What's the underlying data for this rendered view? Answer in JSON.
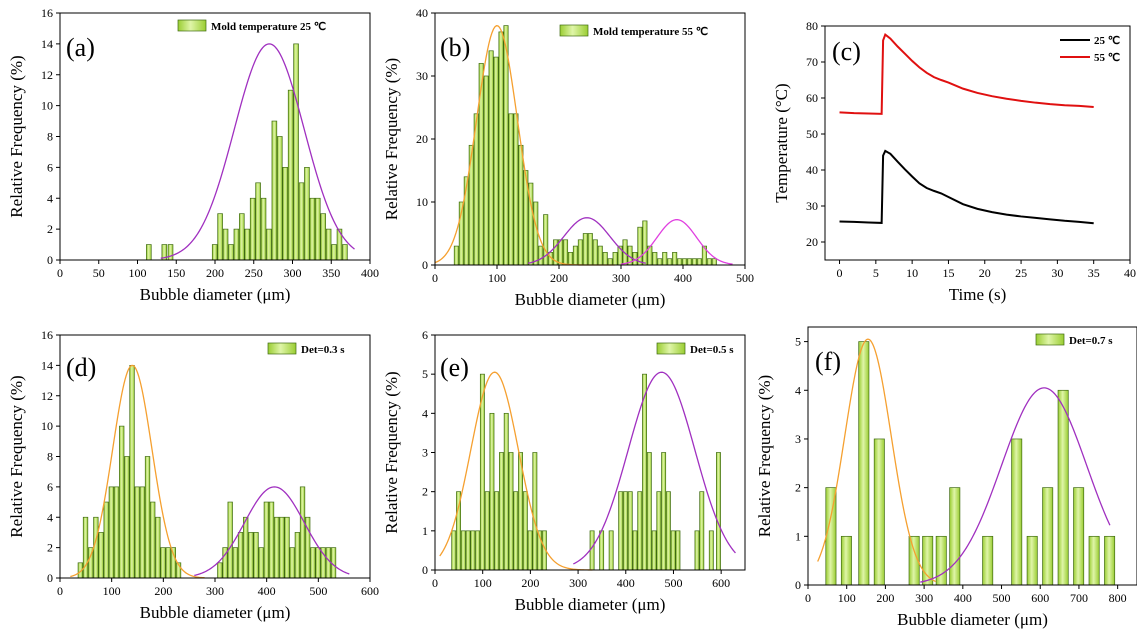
{
  "colors": {
    "bar_fill": "#9acd32",
    "bar_highlight": "#dff5a8",
    "bar_stroke": "#3f6b12",
    "fit_orange": "#f5a030",
    "fit_purple": "#a030c0",
    "fit_magenta": "#e040e0",
    "line_25": "#000000",
    "line_55": "#e01010"
  },
  "chart_data": [
    {
      "id": "a",
      "type": "bar",
      "panel_label": "(a)",
      "legend": "Mold temperature 25 ℃",
      "xlabel": "Bubble diameter (μm)",
      "ylabel": "Relative Frequency (%)",
      "xlim": [
        0,
        400
      ],
      "ylim": [
        0,
        16
      ],
      "xticks": [
        0,
        50,
        100,
        150,
        200,
        250,
        300,
        350,
        400
      ],
      "yticks": [
        0,
        2,
        4,
        6,
        8,
        10,
        12,
        14,
        16
      ],
      "bin_width": 7,
      "bars": [
        [
          115,
          1
        ],
        [
          135,
          1
        ],
        [
          143,
          1
        ],
        [
          200,
          1
        ],
        [
          207,
          3
        ],
        [
          214,
          2
        ],
        [
          221,
          1
        ],
        [
          228,
          2
        ],
        [
          235,
          3
        ],
        [
          242,
          2
        ],
        [
          249,
          4
        ],
        [
          256,
          5
        ],
        [
          263,
          4
        ],
        [
          270,
          2
        ],
        [
          277,
          9
        ],
        [
          284,
          8
        ],
        [
          291,
          6
        ],
        [
          298,
          11
        ],
        [
          305,
          14
        ],
        [
          312,
          5
        ],
        [
          319,
          6
        ],
        [
          326,
          4
        ],
        [
          333,
          4
        ],
        [
          340,
          3
        ],
        [
          347,
          2
        ],
        [
          354,
          1
        ],
        [
          361,
          2
        ],
        [
          368,
          1
        ]
      ],
      "fits": [
        {
          "color": "fit_purple",
          "mean": 270,
          "sd": 45,
          "peak": 14,
          "range": [
            130,
            380
          ]
        }
      ]
    },
    {
      "id": "b",
      "type": "bar",
      "panel_label": "(b)",
      "legend": "Mold temperature 55 ℃",
      "xlabel": "Bubble diameter (μm)",
      "ylabel": "Relative Frequency (%)",
      "xlim": [
        0,
        500
      ],
      "ylim": [
        0,
        40
      ],
      "xticks": [
        0,
        100,
        200,
        300,
        400,
        500
      ],
      "yticks": [
        0,
        10,
        20,
        30,
        40
      ],
      "bin_width": 8,
      "bars": [
        [
          35,
          3
        ],
        [
          43,
          10
        ],
        [
          51,
          14
        ],
        [
          59,
          19
        ],
        [
          67,
          24
        ],
        [
          75,
          32
        ],
        [
          83,
          30
        ],
        [
          91,
          34
        ],
        [
          99,
          33
        ],
        [
          107,
          37
        ],
        [
          115,
          38
        ],
        [
          123,
          24
        ],
        [
          131,
          24
        ],
        [
          139,
          19
        ],
        [
          147,
          15
        ],
        [
          155,
          13
        ],
        [
          163,
          10
        ],
        [
          171,
          3
        ],
        [
          179,
          8
        ],
        [
          187,
          2
        ],
        [
          195,
          4
        ],
        [
          203,
          4
        ],
        [
          211,
          4
        ],
        [
          219,
          2
        ],
        [
          227,
          3
        ],
        [
          235,
          4
        ],
        [
          243,
          5
        ],
        [
          251,
          5
        ],
        [
          259,
          4
        ],
        [
          267,
          3
        ],
        [
          275,
          2
        ],
        [
          283,
          1
        ],
        [
          291,
          2
        ],
        [
          299,
          3
        ],
        [
          307,
          4
        ],
        [
          315,
          3
        ],
        [
          323,
          2
        ],
        [
          331,
          6
        ],
        [
          339,
          7
        ],
        [
          347,
          3
        ],
        [
          355,
          2
        ],
        [
          363,
          1
        ],
        [
          371,
          2
        ],
        [
          379,
          1
        ],
        [
          387,
          2
        ],
        [
          395,
          1
        ],
        [
          403,
          1
        ],
        [
          411,
          1
        ],
        [
          419,
          1
        ],
        [
          427,
          1
        ],
        [
          435,
          3
        ],
        [
          443,
          1
        ],
        [
          451,
          1
        ]
      ],
      "fits": [
        {
          "color": "fit_orange",
          "mean": 100,
          "sd": 33,
          "peak": 38,
          "range": [
            0,
            290
          ]
        },
        {
          "color": "fit_purple",
          "mean": 245,
          "sd": 37,
          "peak": 7.5,
          "range": [
            150,
            340
          ]
        },
        {
          "color": "fit_magenta",
          "mean": 390,
          "sd": 32,
          "peak": 7.2,
          "range": [
            300,
            480
          ]
        }
      ]
    },
    {
      "id": "c",
      "type": "line",
      "panel_label": "(c)",
      "xlabel": "Time (s)",
      "ylabel": "Temperature (°C)",
      "xlim": [
        -2,
        40
      ],
      "ylim": [
        15,
        80
      ],
      "xticks": [
        0,
        5,
        10,
        15,
        20,
        25,
        30,
        35,
        40
      ],
      "yticks": [
        20,
        30,
        40,
        50,
        60,
        70,
        80
      ],
      "series": [
        {
          "name": "25 ℃",
          "color": "line_25",
          "points": [
            [
              0,
              25.7
            ],
            [
              2,
              25.6
            ],
            [
              4,
              25.4
            ],
            [
              5.8,
              25.3
            ],
            [
              6.0,
              44
            ],
            [
              6.3,
              45.3
            ],
            [
              7,
              44.5
            ],
            [
              8,
              42.3
            ],
            [
              9,
              40.2
            ],
            [
              10,
              38.2
            ],
            [
              11,
              36.3
            ],
            [
              12,
              35
            ],
            [
              13,
              34.2
            ],
            [
              14,
              33.5
            ],
            [
              15,
              32.5
            ],
            [
              17,
              30.5
            ],
            [
              19,
              29.2
            ],
            [
              21,
              28.3
            ],
            [
              23,
              27.6
            ],
            [
              25,
              27.1
            ],
            [
              27,
              26.7
            ],
            [
              29,
              26.3
            ],
            [
              31,
              25.9
            ],
            [
              33,
              25.6
            ],
            [
              35,
              25.2
            ]
          ]
        },
        {
          "name": "55 ℃",
          "color": "line_55",
          "points": [
            [
              0,
              56
            ],
            [
              2,
              55.8
            ],
            [
              4,
              55.7
            ],
            [
              5.8,
              55.6
            ],
            [
              6.0,
              76
            ],
            [
              6.3,
              77.6
            ],
            [
              7,
              76.5
            ],
            [
              8,
              74.3
            ],
            [
              9,
              72.3
            ],
            [
              10,
              70.3
            ],
            [
              11,
              68.5
            ],
            [
              12,
              67
            ],
            [
              13,
              65.8
            ],
            [
              14,
              65
            ],
            [
              15,
              64.3
            ],
            [
              17,
              62.6
            ],
            [
              19,
              61.4
            ],
            [
              21,
              60.5
            ],
            [
              23,
              59.8
            ],
            [
              25,
              59.2
            ],
            [
              27,
              58.7
            ],
            [
              29,
              58.3
            ],
            [
              31,
              58
            ],
            [
              33,
              57.8
            ],
            [
              35,
              57.5
            ]
          ]
        }
      ]
    },
    {
      "id": "d",
      "type": "bar",
      "panel_label": "(d)",
      "legend": "Det=0.3 s",
      "xlabel": "Bubble diameter (μm)",
      "ylabel": "Relative Frequency (%)",
      "xlim": [
        0,
        600
      ],
      "ylim": [
        0,
        16
      ],
      "xticks": [
        0,
        100,
        200,
        300,
        400,
        500,
        600
      ],
      "yticks": [
        0,
        2,
        4,
        6,
        8,
        10,
        12,
        14,
        16
      ],
      "bin_width": 10,
      "bars": [
        [
          40,
          1
        ],
        [
          50,
          4
        ],
        [
          60,
          2
        ],
        [
          70,
          4
        ],
        [
          80,
          3
        ],
        [
          90,
          5
        ],
        [
          100,
          6
        ],
        [
          110,
          6
        ],
        [
          120,
          10
        ],
        [
          130,
          8
        ],
        [
          140,
          14
        ],
        [
          150,
          6
        ],
        [
          160,
          6
        ],
        [
          170,
          8
        ],
        [
          180,
          5
        ],
        [
          190,
          4
        ],
        [
          200,
          2
        ],
        [
          210,
          2
        ],
        [
          220,
          2
        ],
        [
          230,
          1
        ],
        [
          310,
          1
        ],
        [
          320,
          2
        ],
        [
          330,
          5
        ],
        [
          340,
          2
        ],
        [
          350,
          3
        ],
        [
          360,
          4
        ],
        [
          370,
          3
        ],
        [
          380,
          3
        ],
        [
          390,
          2
        ],
        [
          400,
          5
        ],
        [
          410,
          5
        ],
        [
          420,
          4
        ],
        [
          430,
          4
        ],
        [
          440,
          4
        ],
        [
          450,
          2
        ],
        [
          460,
          3
        ],
        [
          470,
          6
        ],
        [
          480,
          4
        ],
        [
          490,
          2
        ],
        [
          500,
          2
        ],
        [
          510,
          2
        ],
        [
          520,
          2
        ],
        [
          530,
          2
        ]
      ],
      "fits": [
        {
          "color": "fit_orange",
          "mean": 140,
          "sd": 38,
          "peak": 14,
          "range": [
            20,
            280
          ]
        },
        {
          "color": "fit_purple",
          "mean": 415,
          "sd": 58,
          "peak": 6,
          "range": [
            260,
            560
          ]
        }
      ]
    },
    {
      "id": "e",
      "type": "bar",
      "panel_label": "(e)",
      "legend": "Det=0.5 s",
      "xlabel": "Bubble diameter (μm)",
      "ylabel": "Relative Frequency (%)",
      "xlim": [
        0,
        650
      ],
      "ylim": [
        0,
        6
      ],
      "xticks": [
        0,
        100,
        200,
        300,
        400,
        500,
        600
      ],
      "yticks": [
        0,
        1,
        2,
        3,
        4,
        5,
        6
      ],
      "bin_width": 10,
      "bars": [
        [
          40,
          1
        ],
        [
          50,
          2
        ],
        [
          60,
          1
        ],
        [
          70,
          1
        ],
        [
          80,
          1
        ],
        [
          90,
          1
        ],
        [
          100,
          5
        ],
        [
          110,
          2
        ],
        [
          120,
          4
        ],
        [
          130,
          2
        ],
        [
          140,
          3
        ],
        [
          150,
          4
        ],
        [
          160,
          3
        ],
        [
          170,
          2
        ],
        [
          180,
          3
        ],
        [
          190,
          2
        ],
        [
          200,
          1
        ],
        [
          210,
          3
        ],
        [
          220,
          1
        ],
        [
          230,
          1
        ],
        [
          330,
          1
        ],
        [
          350,
          1
        ],
        [
          370,
          1
        ],
        [
          390,
          2
        ],
        [
          400,
          2
        ],
        [
          410,
          2
        ],
        [
          420,
          1
        ],
        [
          430,
          2
        ],
        [
          440,
          5
        ],
        [
          450,
          3
        ],
        [
          460,
          1
        ],
        [
          470,
          2
        ],
        [
          480,
          3
        ],
        [
          490,
          2
        ],
        [
          500,
          1
        ],
        [
          510,
          1
        ],
        [
          550,
          1
        ],
        [
          560,
          2
        ],
        [
          580,
          1
        ],
        [
          595,
          3
        ]
      ],
      "fits": [
        {
          "color": "fit_orange",
          "mean": 125,
          "sd": 50,
          "peak": 5.05,
          "range": [
            10,
            330
          ]
        },
        {
          "color": "fit_purple",
          "mean": 475,
          "sd": 70,
          "peak": 5.05,
          "range": [
            290,
            630
          ]
        }
      ]
    },
    {
      "id": "f",
      "type": "bar",
      "panel_label": "(f)",
      "legend": "Det=0.7 s",
      "xlabel": "Bubble diameter (μm)",
      "ylabel": "Relative Frequency (%)",
      "xlim": [
        0,
        850
      ],
      "ylim": [
        0,
        5.3
      ],
      "xticks": [
        0,
        100,
        200,
        300,
        400,
        500,
        600,
        700,
        800
      ],
      "yticks": [
        0,
        1,
        2,
        3,
        4,
        5
      ],
      "bin_width": 28,
      "bars": [
        [
          60,
          2
        ],
        [
          100,
          1
        ],
        [
          145,
          5
        ],
        [
          185,
          3
        ],
        [
          275,
          1
        ],
        [
          310,
          1
        ],
        [
          345,
          1
        ],
        [
          380,
          2
        ],
        [
          465,
          1
        ],
        [
          540,
          3
        ],
        [
          580,
          1
        ],
        [
          620,
          2
        ],
        [
          660,
          4
        ],
        [
          700,
          2
        ],
        [
          740,
          1
        ],
        [
          780,
          1
        ]
      ],
      "fits": [
        {
          "color": "fit_orange",
          "mean": 155,
          "sd": 60,
          "peak": 5.05,
          "range": [
            25,
            330
          ]
        },
        {
          "color": "fit_purple",
          "mean": 610,
          "sd": 110,
          "peak": 4.05,
          "range": [
            290,
            780
          ]
        }
      ]
    }
  ]
}
